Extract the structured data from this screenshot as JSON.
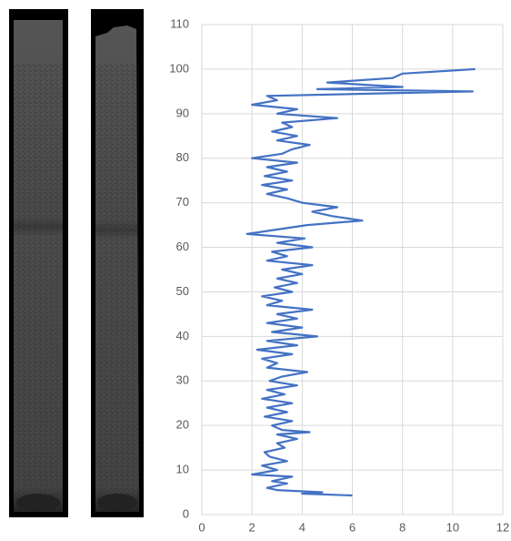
{
  "chart_data": {
    "type": "line",
    "color": "#4472c4",
    "grid": true,
    "xlim": [
      0,
      12
    ],
    "xticks": [
      0,
      2,
      4,
      6,
      8,
      10,
      12
    ],
    "ylim": [
      0,
      110
    ],
    "yticks": [
      0,
      10,
      20,
      30,
      40,
      50,
      60,
      70,
      80,
      90,
      100,
      110
    ],
    "x": [
      6.0,
      4.0,
      4.8,
      3.0,
      2.6,
      3.4,
      2.8,
      3.6,
      2.0,
      3.0,
      2.4,
      3.4,
      2.7,
      2.5,
      3.3,
      3.0,
      3.8,
      3.0,
      4.3,
      3.2,
      2.8,
      3.6,
      2.5,
      3.4,
      2.6,
      3.6,
      2.4,
      3.3,
      2.6,
      3.8,
      2.7,
      3.2,
      4.2,
      2.6,
      3.0,
      2.4,
      3.6,
      2.2,
      3.8,
      2.6,
      4.6,
      2.8,
      4.0,
      2.6,
      3.8,
      3.0,
      4.4,
      2.6,
      3.2,
      2.4,
      3.6,
      2.9,
      3.8,
      3.0,
      4.0,
      3.2,
      4.4,
      2.6,
      3.4,
      2.8,
      4.4,
      3.0,
      4.1,
      1.8,
      3.0,
      4.2,
      6.4,
      5.2,
      4.4,
      5.4,
      4.0,
      3.4,
      2.6,
      3.4,
      2.4,
      3.6,
      2.5,
      3.4,
      2.6,
      3.8,
      2.0,
      3.2,
      3.6,
      4.3,
      3.0,
      3.8,
      2.8,
      3.6,
      3.2,
      5.4,
      3.0,
      3.8,
      2.0,
      3.0,
      2.6,
      10.8,
      4.6,
      8.0,
      5.0,
      7.6,
      8.0,
      10.9
    ],
    "values": [
      4.3,
      4.7,
      5,
      5.5,
      6,
      7,
      7.5,
      8.5,
      9,
      10,
      11,
      12,
      13,
      14,
      15,
      16,
      17,
      18,
      18.5,
      19,
      20,
      21,
      22,
      23,
      24,
      25,
      26,
      27,
      28,
      29,
      30,
      31,
      32,
      33,
      34,
      35,
      36,
      37,
      38,
      39,
      40,
      41,
      42,
      43,
      44,
      45,
      46,
      47,
      48,
      49,
      50,
      51,
      52,
      53,
      54,
      55,
      56,
      57,
      58,
      59,
      60,
      61,
      62,
      63,
      64,
      65,
      66,
      67,
      68,
      69,
      70,
      71,
      72,
      73,
      74,
      75,
      76,
      77,
      78,
      79,
      80,
      81,
      82,
      83,
      84,
      85,
      86,
      87,
      88,
      89,
      90,
      91,
      92,
      93,
      94,
      95,
      95.5,
      96,
      97,
      98,
      99,
      100
    ]
  }
}
